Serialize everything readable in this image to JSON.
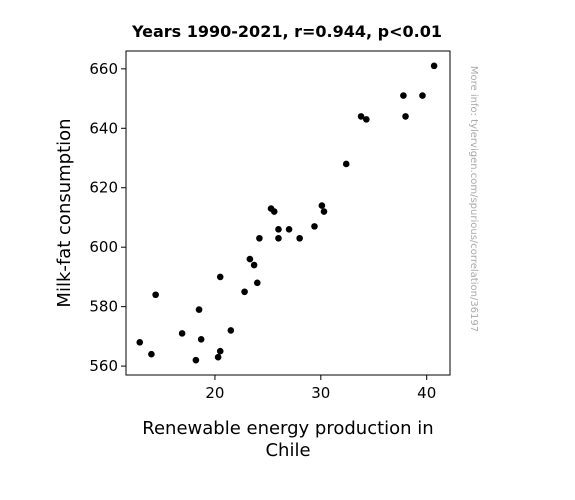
{
  "chart_data": {
    "type": "scatter",
    "title": "Years 1990-2021, r=0.944, p<0.01",
    "xlabel_lines": [
      "Renewable energy production in",
      "Chile"
    ],
    "ylabel": "Milk-fat consumption",
    "side_note": "More info: tylervigen.com/spurious/correlation/36197",
    "xlim": [
      11.6,
      42.2
    ],
    "ylim": [
      557,
      666
    ],
    "xticks": [
      20,
      30,
      40
    ],
    "yticks": [
      560,
      580,
      600,
      620,
      640,
      660
    ],
    "marker_color": "#000000",
    "points": [
      {
        "x": 12.9,
        "y": 568
      },
      {
        "x": 14.0,
        "y": 564
      },
      {
        "x": 14.4,
        "y": 584
      },
      {
        "x": 16.9,
        "y": 571
      },
      {
        "x": 18.2,
        "y": 562
      },
      {
        "x": 18.5,
        "y": 579
      },
      {
        "x": 18.7,
        "y": 569
      },
      {
        "x": 20.3,
        "y": 563
      },
      {
        "x": 20.5,
        "y": 565
      },
      {
        "x": 20.5,
        "y": 590
      },
      {
        "x": 21.5,
        "y": 572
      },
      {
        "x": 22.8,
        "y": 585
      },
      {
        "x": 23.3,
        "y": 596
      },
      {
        "x": 23.7,
        "y": 594
      },
      {
        "x": 24.0,
        "y": 588
      },
      {
        "x": 24.2,
        "y": 603
      },
      {
        "x": 25.3,
        "y": 613
      },
      {
        "x": 25.6,
        "y": 612
      },
      {
        "x": 26.0,
        "y": 606
      },
      {
        "x": 26.0,
        "y": 603
      },
      {
        "x": 27.0,
        "y": 606
      },
      {
        "x": 28.0,
        "y": 603
      },
      {
        "x": 29.4,
        "y": 607
      },
      {
        "x": 30.1,
        "y": 614
      },
      {
        "x": 30.3,
        "y": 612
      },
      {
        "x": 32.4,
        "y": 628
      },
      {
        "x": 33.8,
        "y": 644
      },
      {
        "x": 34.3,
        "y": 643
      },
      {
        "x": 37.8,
        "y": 651
      },
      {
        "x": 38.0,
        "y": 644
      },
      {
        "x": 39.6,
        "y": 651
      },
      {
        "x": 40.7,
        "y": 661
      }
    ]
  }
}
